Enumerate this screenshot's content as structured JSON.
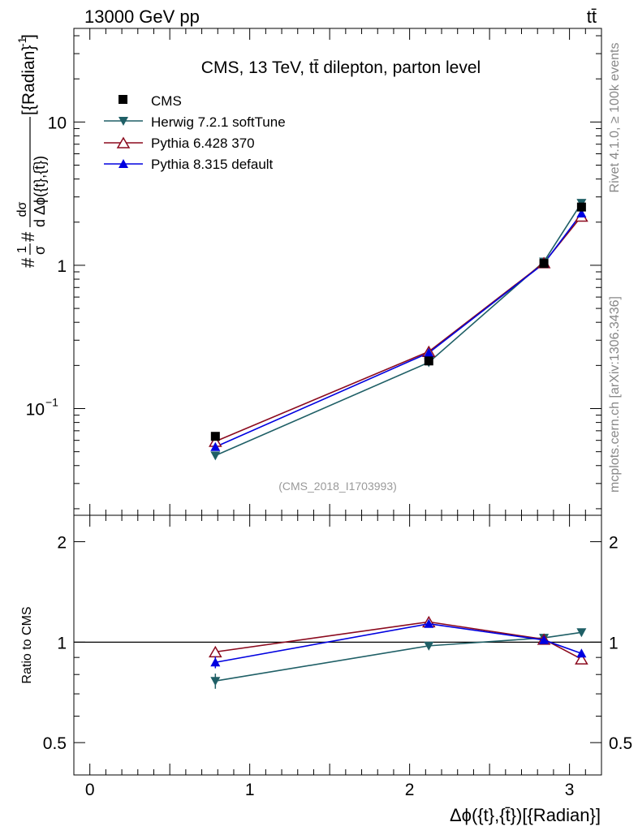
{
  "header": {
    "energy_label": "13000 GeV pp",
    "process_label": "tt̄"
  },
  "side_labels": {
    "rivet": "Rivet 4.1.0, ≥ 100k events",
    "mcplots": "mcplots.cern.ch [arXiv:1306.3436]"
  },
  "colors": {
    "cms": "#000000",
    "herwig": "#1f5f66",
    "pythia6": "#8b0a1e",
    "pythia8": "#0000e0"
  },
  "chart_data": [
    {
      "type": "line",
      "scale": "log",
      "title": "CMS, 13 TeV, tt̄ dilepton, parton level",
      "watermark": "(CMS_2018_I1703993)",
      "ylabel_parts": [
        "#",
        "1",
        "σ",
        "#",
        "dσ",
        "d Δϕ({t},{t̄})",
        "[{Radian}",
        "-1",
        "]"
      ],
      "xlim": [
        -0.1,
        3.2
      ],
      "ylim": [
        0.018,
        45
      ],
      "y_ticks": [
        {
          "value": 0.1,
          "base": "10",
          "exp": "−1"
        },
        {
          "value": 1,
          "label": "1"
        },
        {
          "value": 10,
          "label": "10"
        }
      ],
      "x": [
        0.785,
        2.12,
        2.84,
        3.075
      ],
      "series": [
        {
          "name": "CMS",
          "marker": "square",
          "values": [
            0.064,
            0.215,
            1.03,
            2.55
          ],
          "errors": [
            0.003,
            0.006,
            0.02,
            0.05
          ]
        },
        {
          "name": "Herwig 7.2.1 softTune",
          "marker": "triangle-down",
          "values": [
            0.047,
            0.21,
            1.06,
            2.72
          ]
        },
        {
          "name": "Pythia 6.428 370",
          "marker": "triangle-up-open",
          "values": [
            0.059,
            0.25,
            1.04,
            2.2
          ]
        },
        {
          "name": "Pythia 8.315 default",
          "marker": "triangle-up",
          "values": [
            0.054,
            0.245,
            1.03,
            2.3
          ]
        }
      ]
    },
    {
      "type": "line",
      "scale": "log",
      "ylabel": "Ratio to CMS",
      "xlabel": "Δϕ({t},{t̄})[{Radian}]",
      "xlim": [
        -0.1,
        3.2
      ],
      "ylim": [
        0.4,
        2.4
      ],
      "x_ticks": [
        0,
        1,
        2,
        3
      ],
      "y_ticks": [
        0.5,
        1,
        2
      ],
      "x": [
        0.785,
        2.12,
        2.84,
        3.075
      ],
      "series": [
        {
          "name": "Herwig 7.2.1 softTune",
          "values": [
            0.765,
            0.975,
            1.03,
            1.07
          ],
          "errors": [
            0.04,
            0.02,
            0.015,
            0.01
          ]
        },
        {
          "name": "Pythia 6.428 370",
          "values": [
            0.935,
            1.15,
            1.02,
            0.89
          ],
          "errors": [
            0.035,
            0.02,
            0.015,
            0.015
          ]
        },
        {
          "name": "Pythia 8.315 default",
          "values": [
            0.87,
            1.135,
            1.015,
            0.925
          ],
          "errors": [
            0.035,
            0.02,
            0.015,
            0.02
          ]
        }
      ]
    }
  ]
}
